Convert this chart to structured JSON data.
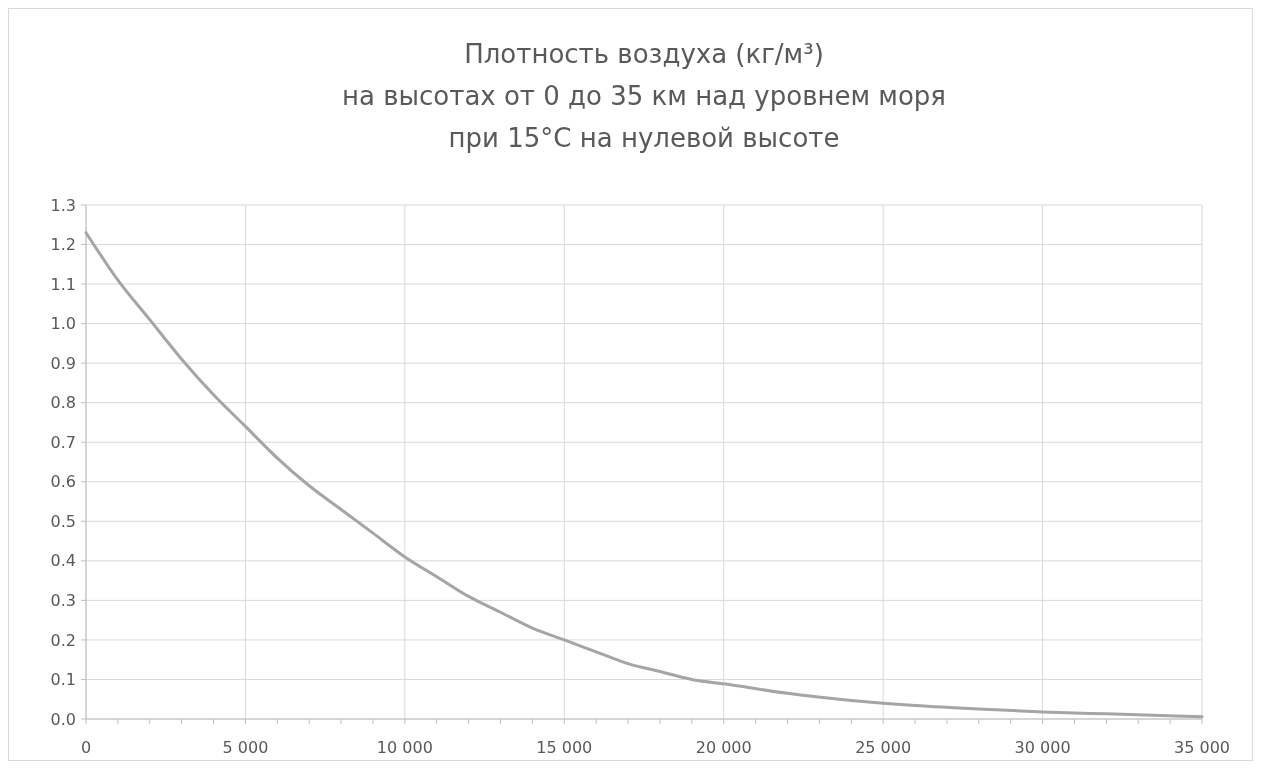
{
  "chart_data": {
    "type": "line",
    "title": "Плотность воздуха (кг/м³)\nна высотах от 0 до 35 км над уровнем моря\nпри 15°C на нулевой высоте",
    "x": [
      0,
      1000,
      2000,
      3000,
      4000,
      5000,
      6000,
      7000,
      8000,
      9000,
      10000,
      11000,
      12000,
      13000,
      14000,
      15000,
      16000,
      17000,
      18000,
      19000,
      20000,
      22000,
      24000,
      25000,
      26000,
      28000,
      30000,
      32000,
      35000
    ],
    "series": [
      {
        "color": "#a5a5a5",
        "values": [
          1.23,
          1.11,
          1.01,
          0.91,
          0.82,
          0.74,
          0.66,
          0.59,
          0.53,
          0.47,
          0.41,
          0.36,
          0.31,
          0.27,
          0.23,
          0.2,
          0.17,
          0.14,
          0.12,
          0.1,
          0.089,
          0.065,
          0.047,
          0.04,
          0.034,
          0.025,
          0.018,
          0.013,
          0.006
        ]
      }
    ],
    "xlim": [
      0,
      35000
    ],
    "xticks": [
      {
        "value": 0,
        "label": "0"
      },
      {
        "value": 1000,
        "label": null
      },
      {
        "value": 2000,
        "label": null
      },
      {
        "value": 3000,
        "label": null
      },
      {
        "value": 4000,
        "label": null
      },
      {
        "value": 5000,
        "label": "5 000"
      },
      {
        "value": 6000,
        "label": null
      },
      {
        "value": 7000,
        "label": null
      },
      {
        "value": 8000,
        "label": null
      },
      {
        "value": 9000,
        "label": null
      },
      {
        "value": 10000,
        "label": "10 000"
      },
      {
        "value": 11000,
        "label": null
      },
      {
        "value": 12000,
        "label": null
      },
      {
        "value": 13000,
        "label": null
      },
      {
        "value": 14000,
        "label": null
      },
      {
        "value": 15000,
        "label": "15 000"
      },
      {
        "value": 16000,
        "label": null
      },
      {
        "value": 17000,
        "label": null
      },
      {
        "value": 18000,
        "label": null
      },
      {
        "value": 19000,
        "label": null
      },
      {
        "value": 20000,
        "label": "20 000"
      },
      {
        "value": 21000,
        "label": null
      },
      {
        "value": 22000,
        "label": null
      },
      {
        "value": 23000,
        "label": null
      },
      {
        "value": 24000,
        "label": null
      },
      {
        "value": 25000,
        "label": "25 000"
      },
      {
        "value": 26000,
        "label": null
      },
      {
        "value": 27000,
        "label": null
      },
      {
        "value": 28000,
        "label": null
      },
      {
        "value": 29000,
        "label": null
      },
      {
        "value": 30000,
        "label": "30 000"
      },
      {
        "value": 31000,
        "label": null
      },
      {
        "value": 32000,
        "label": null
      },
      {
        "value": 33000,
        "label": null
      },
      {
        "value": 34000,
        "label": null
      },
      {
        "value": 35000,
        "label": "35 000"
      }
    ],
    "ylim": [
      0,
      1.3
    ],
    "yticks": [
      {
        "value": 0,
        "label": "0.0"
      },
      {
        "value": 0.1,
        "label": "0.1"
      },
      {
        "value": 0.2,
        "label": "0.2"
      },
      {
        "value": 0.3,
        "label": "0.3"
      },
      {
        "value": 0.4,
        "label": "0.4"
      },
      {
        "value": 0.5,
        "label": "0.5"
      },
      {
        "value": 0.6,
        "label": "0.6"
      },
      {
        "value": 0.7,
        "label": "0.7"
      },
      {
        "value": 0.8,
        "label": "0.8"
      },
      {
        "value": 0.9,
        "label": "0.9"
      },
      {
        "value": 1.0,
        "label": "1.0"
      },
      {
        "value": 1.1,
        "label": "1.1"
      },
      {
        "value": 1.2,
        "label": "1.2"
      },
      {
        "value": 1.3,
        "label": "1.3"
      }
    ],
    "grid": true,
    "marker": "none",
    "line_style": "solid"
  }
}
